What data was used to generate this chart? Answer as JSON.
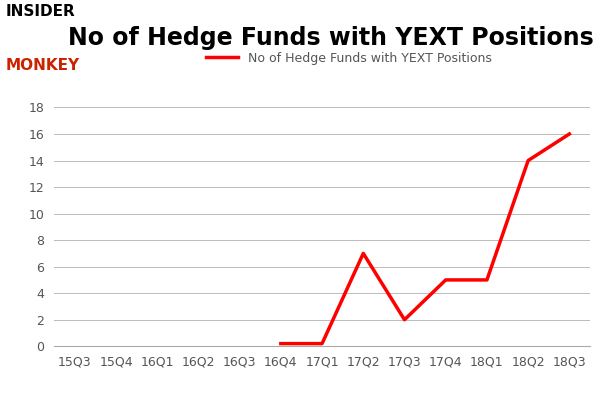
{
  "x_labels": [
    "15Q3",
    "15Q4",
    "16Q1",
    "16Q2",
    "16Q3",
    "16Q4",
    "17Q1",
    "17Q2",
    "17Q3",
    "17Q4",
    "18Q1",
    "18Q2",
    "18Q3"
  ],
  "y_values": [
    null,
    null,
    null,
    null,
    null,
    0.2,
    0.2,
    7,
    2,
    5,
    5,
    14,
    16
  ],
  "line_color": "#FF0000",
  "line_width": 2.5,
  "title": "No of Hedge Funds with YEXT Positions",
  "legend_label": "No of Hedge Funds with YEXT Positions",
  "ylim": [
    0,
    18
  ],
  "yticks": [
    0,
    2,
    4,
    6,
    8,
    10,
    12,
    14,
    16,
    18
  ],
  "background_color": "#ffffff",
  "grid_color": "#bbbbbb",
  "title_fontsize": 17,
  "title_color": "#000000",
  "tick_fontsize": 9,
  "legend_fontsize": 9,
  "logo_insider_color": "#000000",
  "logo_monkey_color": "#cc2200"
}
